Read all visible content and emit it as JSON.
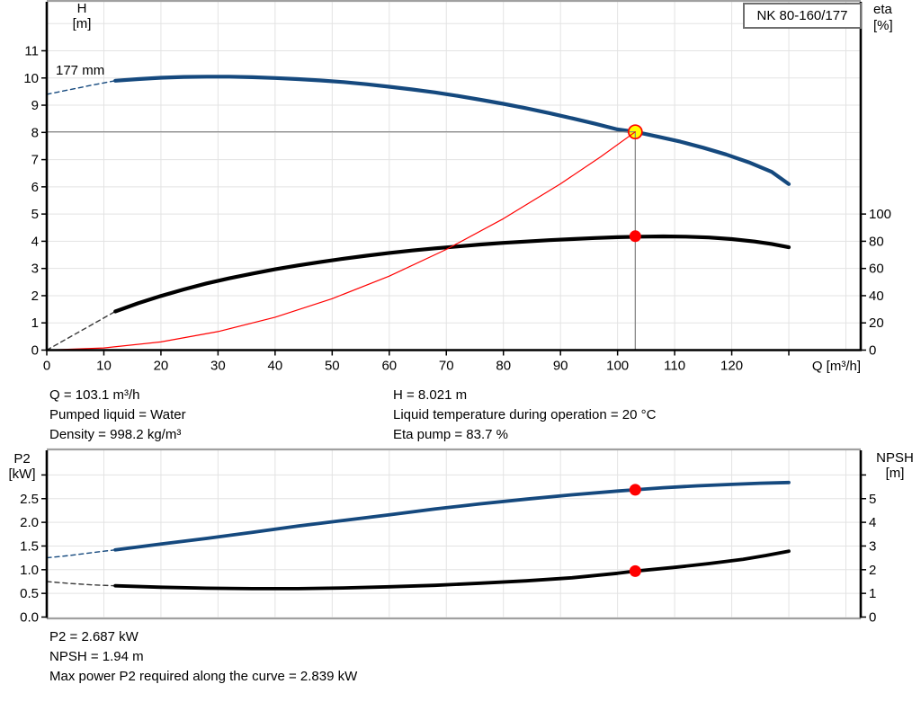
{
  "pump": {
    "model": "NK 80-160/177",
    "impeller_diameter": "177 mm"
  },
  "axis_titles": {
    "h": "H",
    "h_unit": "[m]",
    "eta": "eta",
    "eta_unit": "[%]",
    "q": "Q [m³/h]",
    "p2": "P2",
    "p2_unit": "[kW]",
    "npsh": "NPSH",
    "npsh_unit": "[m]"
  },
  "operating_info": {
    "q": "Q = 103.1 m³/h",
    "pumped_liquid": "Pumped liquid = Water",
    "density": "Density = 998.2 kg/m³",
    "h": "H = 8.021 m",
    "liquid_temperature": "Liquid temperature during operation = 20 °C",
    "eta_pump": "Eta pump = 83.7 %"
  },
  "power_info": {
    "p2": "P2 = 2.687 kW",
    "npsh": "NPSH = 1.94 m",
    "max_p2": "Max power P2 required along the curve = 2.839 kW"
  },
  "colors": {
    "curve_blue": "#15497e",
    "curve_black": "#000000",
    "red": "#ff0000",
    "yellow": "#ffff00",
    "grid": "#e3e3e3",
    "frame": "#a0a0a0",
    "ref_line": "#808080",
    "axis": "#000000"
  },
  "chart_data": [
    {
      "id": "performance",
      "type": "line",
      "title": "NK 80-160/177",
      "xlabel": "Q [m³/h]",
      "ylabel_left": "H [m]",
      "ylabel_right": "eta [%]",
      "x_range": [
        0,
        142.6
      ],
      "y_range": [
        0,
        12.8
      ],
      "right_axis_note": "eta 0-100 % spans H 0-5 m",
      "x_ticks": [
        [
          0,
          "0"
        ],
        [
          10,
          "10"
        ],
        [
          20,
          "20"
        ],
        [
          30,
          "30"
        ],
        [
          40,
          "40"
        ],
        [
          50,
          "50"
        ],
        [
          60,
          "60"
        ],
        [
          70,
          "70"
        ],
        [
          80,
          "80"
        ],
        [
          90,
          "90"
        ],
        [
          100,
          "100"
        ],
        [
          110,
          "110"
        ],
        [
          120,
          "120"
        ],
        [
          130,
          ""
        ]
      ],
      "y_ticks": [
        [
          0,
          "0"
        ],
        [
          1,
          "1"
        ],
        [
          2,
          "2"
        ],
        [
          3,
          "3"
        ],
        [
          4,
          "4"
        ],
        [
          5,
          "5"
        ],
        [
          6,
          "6"
        ],
        [
          7,
          "7"
        ],
        [
          8,
          "8"
        ],
        [
          9,
          "9"
        ],
        [
          10,
          "10"
        ],
        [
          11,
          "11"
        ]
      ],
      "right_ticks": [
        [
          0,
          "0"
        ],
        [
          1,
          "20"
        ],
        [
          2,
          "40"
        ],
        [
          3,
          "60"
        ],
        [
          4,
          "80"
        ],
        [
          5,
          "100"
        ]
      ],
      "grid_x": [
        10,
        20,
        30,
        40,
        50,
        60,
        70,
        80,
        90,
        100,
        110,
        120,
        130,
        140
      ],
      "grid_y": [
        1,
        2,
        3,
        4,
        5,
        6,
        7,
        8,
        9,
        10,
        11,
        12
      ],
      "series": [
        {
          "name": "head-curve-dashed",
          "color": "#15497e",
          "width": 1.4,
          "dash": "5 4",
          "z": 1,
          "points": [
            [
              0,
              9.4
            ],
            [
              4,
              9.57
            ],
            [
              8,
              9.74
            ],
            [
              12,
              9.9
            ]
          ]
        },
        {
          "name": "head-curve",
          "color": "#15497e",
          "width": 4.2,
          "z": 2,
          "points": [
            [
              12,
              9.9
            ],
            [
              16,
              9.96
            ],
            [
              20,
              10.01
            ],
            [
              24,
              10.04
            ],
            [
              28,
              10.05
            ],
            [
              32,
              10.05
            ],
            [
              36,
              10.03
            ],
            [
              40,
              10.0
            ],
            [
              44,
              9.96
            ],
            [
              48,
              9.91
            ],
            [
              52,
              9.85
            ],
            [
              56,
              9.77
            ],
            [
              60,
              9.68
            ],
            [
              64,
              9.58
            ],
            [
              68,
              9.47
            ],
            [
              72,
              9.34
            ],
            [
              76,
              9.2
            ],
            [
              80,
              9.05
            ],
            [
              84,
              8.89
            ],
            [
              88,
              8.71
            ],
            [
              92,
              8.52
            ],
            [
              96,
              8.32
            ],
            [
              100,
              8.11
            ],
            [
              103.1,
              8.02
            ],
            [
              107,
              7.85
            ],
            [
              111,
              7.66
            ],
            [
              115,
              7.44
            ],
            [
              119,
              7.19
            ],
            [
              123,
              6.9
            ],
            [
              127,
              6.55
            ],
            [
              130,
              6.1
            ]
          ]
        },
        {
          "name": "efficiency-curve-dashed",
          "color": "#3a3a3a",
          "width": 1.4,
          "dash": "5 4",
          "z": 1,
          "points": [
            [
              0,
              0
            ],
            [
              12,
              1.42
            ]
          ]
        },
        {
          "name": "efficiency-curve",
          "color": "#000000",
          "width": 4.2,
          "z": 2,
          "points": [
            [
              12,
              1.42
            ],
            [
              16,
              1.72
            ],
            [
              20,
              1.99
            ],
            [
              24,
              2.23
            ],
            [
              28,
              2.45
            ],
            [
              32,
              2.64
            ],
            [
              36,
              2.81
            ],
            [
              40,
              2.97
            ],
            [
              44,
              3.11
            ],
            [
              48,
              3.24
            ],
            [
              52,
              3.36
            ],
            [
              56,
              3.47
            ],
            [
              60,
              3.57
            ],
            [
              64,
              3.66
            ],
            [
              68,
              3.74
            ],
            [
              72,
              3.81
            ],
            [
              76,
              3.88
            ],
            [
              80,
              3.94
            ],
            [
              84,
              3.99
            ],
            [
              88,
              4.04
            ],
            [
              92,
              4.08
            ],
            [
              96,
              4.12
            ],
            [
              100,
              4.15
            ],
            [
              104,
              4.17
            ],
            [
              108,
              4.18
            ],
            [
              112,
              4.17
            ],
            [
              116,
              4.14
            ],
            [
              120,
              4.08
            ],
            [
              124,
              3.99
            ],
            [
              127,
              3.9
            ],
            [
              130,
              3.78
            ]
          ]
        },
        {
          "name": "system-curve",
          "color": "#ff0000",
          "width": 1.2,
          "z": 5,
          "points": [
            [
              0,
              0
            ],
            [
              10,
              0.08
            ],
            [
              20,
              0.3
            ],
            [
              30,
              0.68
            ],
            [
              40,
              1.21
            ],
            [
              50,
              1.89
            ],
            [
              60,
              2.72
            ],
            [
              70,
              3.7
            ],
            [
              80,
              4.83
            ],
            [
              90,
              6.11
            ],
            [
              97,
              7.1
            ],
            [
              103.1,
              8.021
            ]
          ]
        }
      ],
      "ref_lines": [
        {
          "name": "duty-head-line",
          "z": 4,
          "from": [
            0,
            8.021
          ],
          "to": [
            103.1,
            8.021
          ]
        },
        {
          "name": "duty-flow-line",
          "z": 4,
          "from": [
            103.1,
            0
          ],
          "to": [
            103.1,
            8.021
          ]
        }
      ],
      "markers": [
        {
          "name": "duty-point-fill",
          "z": 3,
          "x": 103.1,
          "y": 8.021,
          "r": 7.5,
          "fill": "#ffff00"
        },
        {
          "name": "duty-point-ring",
          "z": 6,
          "x": 103.1,
          "y": 8.021,
          "r": 7.5,
          "stroke": "#ff0000",
          "sw": 1.7
        },
        {
          "name": "efficiency-point",
          "z": 6,
          "x": 103.1,
          "y": 4.185,
          "r": 6.5,
          "fill": "#ff0000"
        }
      ]
    },
    {
      "id": "power-npsh",
      "type": "line",
      "title": "",
      "xlabel": "",
      "ylabel_left": "P2 [kW]",
      "ylabel_right": "NPSH [m]",
      "x_range": [
        0,
        142.6
      ],
      "y_range": [
        0,
        3.52
      ],
      "right_axis_note": "NPSH 0-6 m spans P2 0-3 kW",
      "x_ticks": [],
      "y_ticks": [
        [
          0,
          "0.0"
        ],
        [
          0.5,
          "0.5"
        ],
        [
          1,
          "1.0"
        ],
        [
          1.5,
          "1.5"
        ],
        [
          2,
          "2.0"
        ],
        [
          2.5,
          "2.5"
        ],
        [
          3,
          ""
        ]
      ],
      "right_ticks": [
        [
          0,
          "0"
        ],
        [
          0.5,
          "1"
        ],
        [
          1,
          "2"
        ],
        [
          1.5,
          "3"
        ],
        [
          2,
          "4"
        ],
        [
          2.5,
          "5"
        ],
        [
          3,
          ""
        ]
      ],
      "grid_x": [
        10,
        20,
        30,
        40,
        50,
        60,
        70,
        80,
        90,
        100,
        110,
        120,
        130,
        140
      ],
      "grid_y": [
        0.5,
        1,
        1.5,
        2,
        2.5,
        3
      ],
      "series": [
        {
          "name": "p2-curve-dashed",
          "color": "#15497e",
          "width": 1.4,
          "dash": "5 4",
          "z": 1,
          "points": [
            [
              0,
              1.25
            ],
            [
              4,
              1.3
            ],
            [
              8,
              1.36
            ],
            [
              12,
              1.42
            ]
          ]
        },
        {
          "name": "p2-curve",
          "color": "#15497e",
          "width": 3.8,
          "z": 2,
          "points": [
            [
              12,
              1.42
            ],
            [
              20,
              1.54
            ],
            [
              28,
              1.66
            ],
            [
              36,
              1.79
            ],
            [
              44,
              1.92
            ],
            [
              52,
              2.04
            ],
            [
              60,
              2.16
            ],
            [
              68,
              2.28
            ],
            [
              76,
              2.39
            ],
            [
              84,
              2.49
            ],
            [
              92,
              2.58
            ],
            [
              100,
              2.66
            ],
            [
              103.1,
              2.687
            ],
            [
              108,
              2.73
            ],
            [
              114,
              2.77
            ],
            [
              120,
              2.8
            ],
            [
              125,
              2.825
            ],
            [
              130,
              2.84
            ]
          ]
        },
        {
          "name": "npsh-curve-dashed",
          "color": "#3a3a3a",
          "width": 1.4,
          "dash": "5 4",
          "z": 1,
          "points": [
            [
              0,
              0.75
            ],
            [
              4,
              0.71
            ],
            [
              8,
              0.68
            ],
            [
              12,
              0.66
            ]
          ]
        },
        {
          "name": "npsh-curve",
          "color": "#000000",
          "width": 3.8,
          "z": 2,
          "points": [
            [
              12,
              0.66
            ],
            [
              20,
              0.63
            ],
            [
              28,
              0.61
            ],
            [
              36,
              0.6
            ],
            [
              44,
              0.6
            ],
            [
              52,
              0.615
            ],
            [
              60,
              0.64
            ],
            [
              68,
              0.67
            ],
            [
              76,
              0.715
            ],
            [
              84,
              0.765
            ],
            [
              92,
              0.83
            ],
            [
              100,
              0.925
            ],
            [
              103.1,
              0.97
            ],
            [
              110,
              1.05
            ],
            [
              116,
              1.13
            ],
            [
              122,
              1.22
            ],
            [
              126,
              1.3
            ],
            [
              130,
              1.39
            ]
          ]
        }
      ],
      "ref_lines": [],
      "markers": [
        {
          "name": "p2-operating-point",
          "z": 3,
          "x": 103.1,
          "y": 2.687,
          "r": 6.5,
          "fill": "#ff0000"
        },
        {
          "name": "npsh-operating-point",
          "z": 3,
          "x": 103.1,
          "y": 0.97,
          "r": 6.5,
          "fill": "#ff0000"
        }
      ]
    }
  ]
}
